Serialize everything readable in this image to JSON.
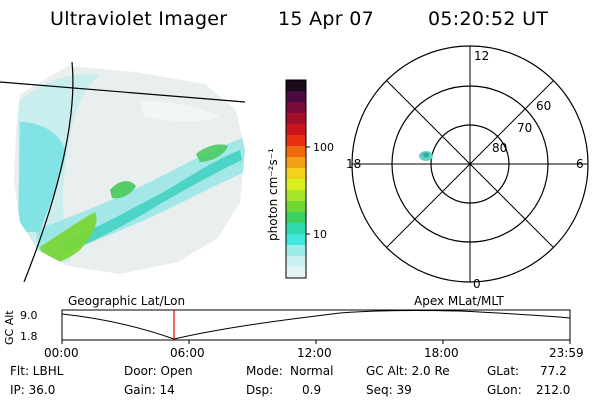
{
  "header": {
    "title": "Ultraviolet Imager",
    "date": "15 Apr 07",
    "time": "05:20:52 UT"
  },
  "colorbar": {
    "unit_label": "photon cm⁻²s⁻¹",
    "ticks": [
      "100",
      "10"
    ],
    "colors": [
      "#1a0a1a",
      "#4a0a40",
      "#7a0a3a",
      "#a0102a",
      "#c8141a",
      "#e63010",
      "#f06a10",
      "#f2a018",
      "#f2d21a",
      "#d8ef20",
      "#a6e628",
      "#6fd830",
      "#3fd062",
      "#30d8b0",
      "#44e6e0",
      "#9cecec",
      "#cdf0f0",
      "#e4f3f3"
    ]
  },
  "polar": {
    "labels": {
      "top": "12",
      "bottom": "0",
      "left": "18",
      "right": "6"
    },
    "lat_labels": [
      "60",
      "70",
      "80"
    ]
  },
  "timeline": {
    "left_title": "Geographic Lat/Lon",
    "right_title": "Apex MLat/MLT",
    "y_axis_label": "GC Alt",
    "y_ticks": [
      "9.0",
      "1.8"
    ],
    "x_ticks": [
      "00:00",
      "06:00",
      "12:00",
      "18:00",
      "23:59"
    ],
    "marker_color": "#e00000"
  },
  "stats": {
    "filter": "Flt: LBHL",
    "ip": "IP: 36.0",
    "door": "Door: Open",
    "gain": "Gain: 14",
    "mode_label": "Mode:",
    "mode_value": "Normal",
    "dsp_label": "Dsp:",
    "dsp_value": "0.9",
    "gc_alt": "GC Alt: 2.0 Re",
    "seq": "Seq: 39",
    "glat_label": "GLat:",
    "glat_value": "77.2",
    "glon_label": "GLon:",
    "glon_value": "212.0"
  }
}
